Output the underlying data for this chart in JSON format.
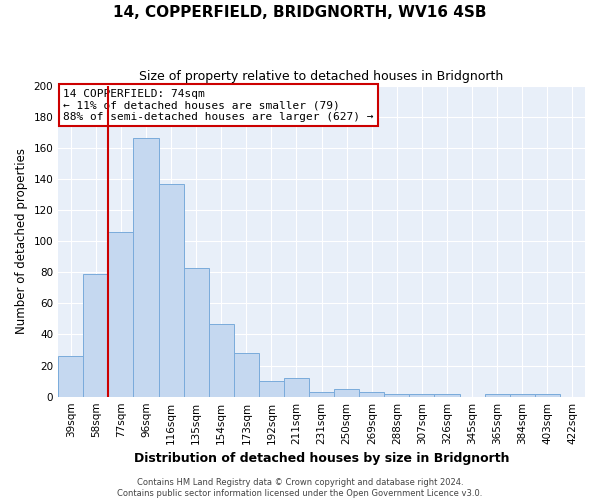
{
  "title": "14, COPPERFIELD, BRIDGNORTH, WV16 4SB",
  "subtitle": "Size of property relative to detached houses in Bridgnorth",
  "xlabel": "Distribution of detached houses by size in Bridgnorth",
  "ylabel": "Number of detached properties",
  "bar_values": [
    26,
    79,
    106,
    166,
    137,
    83,
    47,
    28,
    10,
    12,
    3,
    5,
    3,
    2,
    2,
    2,
    0,
    2,
    2,
    2
  ],
  "bin_labels": [
    "39sqm",
    "58sqm",
    "77sqm",
    "96sqm",
    "116sqm",
    "135sqm",
    "154sqm",
    "173sqm",
    "192sqm",
    "211sqm",
    "231sqm",
    "250sqm",
    "269sqm",
    "288sqm",
    "307sqm",
    "326sqm",
    "345sqm",
    "365sqm",
    "384sqm",
    "403sqm",
    "422sqm"
  ],
  "bar_color": "#c5d8f0",
  "bar_edge_color": "#7aabdb",
  "fig_bg_color": "#ffffff",
  "plot_bg_color": "#e8eff9",
  "grid_color": "#ffffff",
  "vline_color": "#cc0000",
  "annotation_text": "14 COPPERFIELD: 74sqm\n← 11% of detached houses are smaller (79)\n88% of semi-detached houses are larger (627) →",
  "annotation_box_facecolor": "#ffffff",
  "annotation_box_edgecolor": "#cc0000",
  "ylim": [
    0,
    200
  ],
  "yticks": [
    0,
    20,
    40,
    60,
    80,
    100,
    120,
    140,
    160,
    180,
    200
  ],
  "footer_line1": "Contains HM Land Registry data © Crown copyright and database right 2024.",
  "footer_line2": "Contains public sector information licensed under the Open Government Licence v3.0."
}
